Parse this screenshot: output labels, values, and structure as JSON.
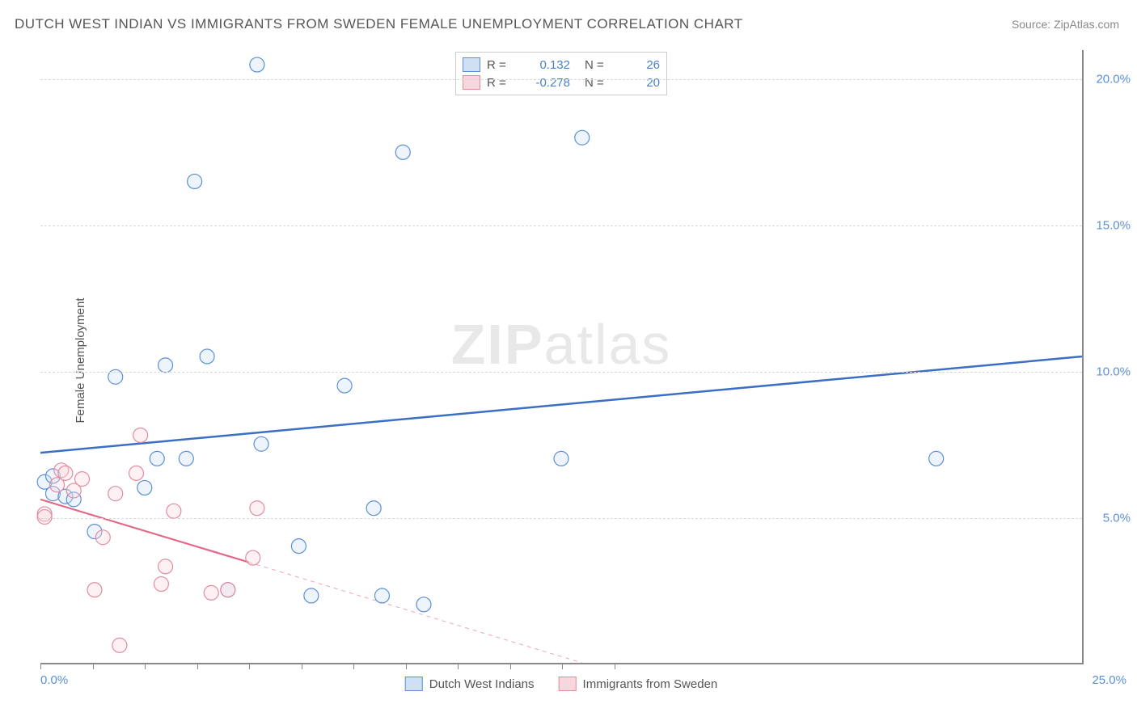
{
  "title": "DUTCH WEST INDIAN VS IMMIGRANTS FROM SWEDEN FEMALE UNEMPLOYMENT CORRELATION CHART",
  "source": "Source: ZipAtlas.com",
  "ylabel": "Female Unemployment",
  "watermark_bold": "ZIP",
  "watermark_rest": "atlas",
  "chart": {
    "type": "scatter",
    "xlim": [
      0,
      25
    ],
    "ylim": [
      0,
      21
    ],
    "y_gridlines": [
      5,
      10,
      15,
      20
    ],
    "y_tick_labels": [
      "5.0%",
      "10.0%",
      "15.0%",
      "20.0%"
    ],
    "x_tick_left": "0.0%",
    "x_tick_right": "25.0%",
    "x_minor_ticks": [
      0,
      1.25,
      2.5,
      3.75,
      5,
      6.25,
      7.5,
      8.75,
      10,
      11.25,
      12.5,
      13.75
    ],
    "background_color": "#ffffff",
    "grid_color": "#d8d8d8",
    "axis_color": "#888888",
    "marker_radius": 9,
    "marker_fill_opacity": 0.35,
    "marker_stroke_width": 1.2,
    "series": [
      {
        "name": "Dutch West Indians",
        "color_fill": "#cfe0f5",
        "color_stroke": "#5b8fd6",
        "R": "0.132",
        "N": "26",
        "trend": {
          "x1": 0,
          "y1": 7.2,
          "x2": 25,
          "y2": 10.5,
          "solid_until_x": 25,
          "line_color": "#3b6fc4",
          "line_width": 2.5
        },
        "points": [
          {
            "x": 0.1,
            "y": 6.2
          },
          {
            "x": 0.3,
            "y": 6.4
          },
          {
            "x": 0.3,
            "y": 5.8
          },
          {
            "x": 0.6,
            "y": 5.7
          },
          {
            "x": 0.8,
            "y": 5.6
          },
          {
            "x": 1.3,
            "y": 4.5
          },
          {
            "x": 1.8,
            "y": 9.8
          },
          {
            "x": 2.5,
            "y": 6.0
          },
          {
            "x": 2.8,
            "y": 7.0
          },
          {
            "x": 3.0,
            "y": 10.2
          },
          {
            "x": 3.5,
            "y": 7.0
          },
          {
            "x": 3.7,
            "y": 16.5
          },
          {
            "x": 4.0,
            "y": 10.5
          },
          {
            "x": 4.5,
            "y": 2.5
          },
          {
            "x": 5.2,
            "y": 20.5
          },
          {
            "x": 5.3,
            "y": 7.5
          },
          {
            "x": 6.2,
            "y": 4.0
          },
          {
            "x": 6.5,
            "y": 2.3
          },
          {
            "x": 7.3,
            "y": 9.5
          },
          {
            "x": 8.0,
            "y": 5.3
          },
          {
            "x": 8.2,
            "y": 2.3
          },
          {
            "x": 8.7,
            "y": 17.5
          },
          {
            "x": 9.2,
            "y": 2.0
          },
          {
            "x": 12.5,
            "y": 7.0
          },
          {
            "x": 13.0,
            "y": 18.0
          },
          {
            "x": 21.5,
            "y": 7.0
          }
        ]
      },
      {
        "name": "Immigrants from Sweden",
        "color_fill": "#f8d6de",
        "color_stroke": "#e28ca0",
        "R": "-0.278",
        "N": "20",
        "trend": {
          "x1": 0,
          "y1": 5.6,
          "x2": 13,
          "y2": 0,
          "solid_until_x": 5.0,
          "line_color": "#e06a88",
          "line_width": 2.2
        },
        "points": [
          {
            "x": 0.1,
            "y": 5.1
          },
          {
            "x": 0.1,
            "y": 5.0
          },
          {
            "x": 0.4,
            "y": 6.1
          },
          {
            "x": 0.5,
            "y": 6.6
          },
          {
            "x": 0.6,
            "y": 6.5
          },
          {
            "x": 0.8,
            "y": 5.9
          },
          {
            "x": 1.0,
            "y": 6.3
          },
          {
            "x": 1.3,
            "y": 2.5
          },
          {
            "x": 1.5,
            "y": 4.3
          },
          {
            "x": 1.8,
            "y": 5.8
          },
          {
            "x": 1.9,
            "y": 0.6
          },
          {
            "x": 2.3,
            "y": 6.5
          },
          {
            "x": 2.4,
            "y": 7.8
          },
          {
            "x": 2.9,
            "y": 2.7
          },
          {
            "x": 3.0,
            "y": 3.3
          },
          {
            "x": 3.2,
            "y": 5.2
          },
          {
            "x": 4.1,
            "y": 2.4
          },
          {
            "x": 4.5,
            "y": 2.5
          },
          {
            "x": 5.1,
            "y": 3.6
          },
          {
            "x": 5.2,
            "y": 5.3
          }
        ]
      }
    ],
    "legend_top_rows": [
      {
        "swatch": "blue",
        "r_label": "R =",
        "r_val": "0.132",
        "n_label": "N =",
        "n_val": "26",
        "val_class": ""
      },
      {
        "swatch": "pink",
        "r_label": "R =",
        "r_val": "-0.278",
        "n_label": "N =",
        "n_val": "20",
        "val_class": ""
      }
    ],
    "legend_bottom": [
      {
        "swatch": "blue",
        "label": "Dutch West Indians"
      },
      {
        "swatch": "pink",
        "label": "Immigrants from Sweden"
      }
    ]
  }
}
